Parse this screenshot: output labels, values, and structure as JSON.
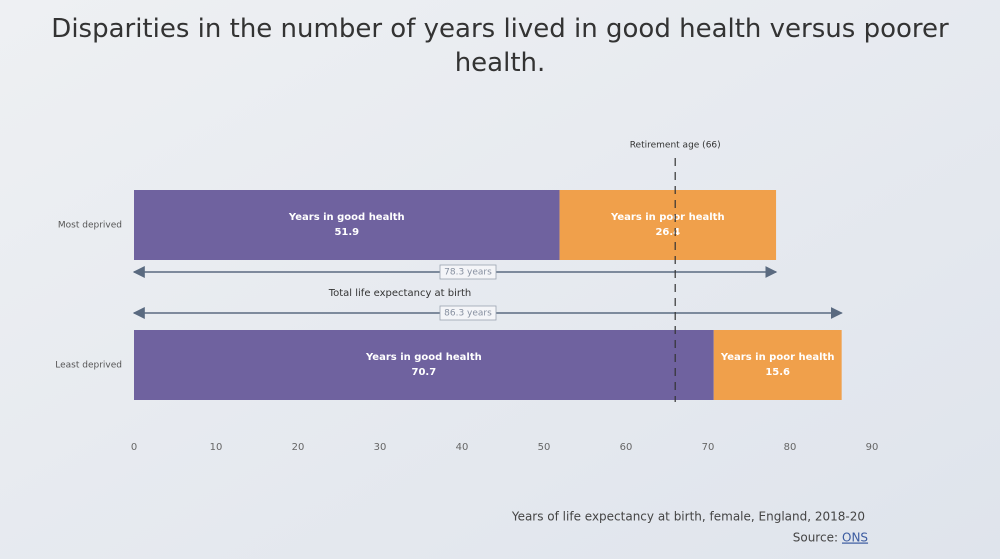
{
  "chart_data": {
    "type": "stacked-bar-horizontal",
    "title": "Disparities in the number of years lived in good health versus poorer health.",
    "categories": [
      "Most deprived",
      "Least deprived"
    ],
    "series": [
      {
        "name": "Years in good health",
        "color": "#6f629f",
        "values": [
          51.9,
          70.7
        ]
      },
      {
        "name": "Years in poor health",
        "color": "#f0a04b",
        "values": [
          26.4,
          15.6
        ]
      }
    ],
    "xlim": [
      0,
      90
    ],
    "xticks": [
      0,
      10,
      20,
      30,
      40,
      50,
      60,
      70,
      80,
      90
    ],
    "grid": false,
    "annotation": {
      "text": "Retirement age (66)",
      "x": 66
    },
    "totals_title": "Total life expectancy at birth",
    "totals": [
      {
        "value": 78.3,
        "label": "78.3 years"
      },
      {
        "value": 86.3,
        "label": "86.3 years"
      }
    ],
    "caption": "Years of life expectancy at birth, female, England, 2018-20",
    "source_label": "Source:",
    "source_link": "ONS"
  }
}
